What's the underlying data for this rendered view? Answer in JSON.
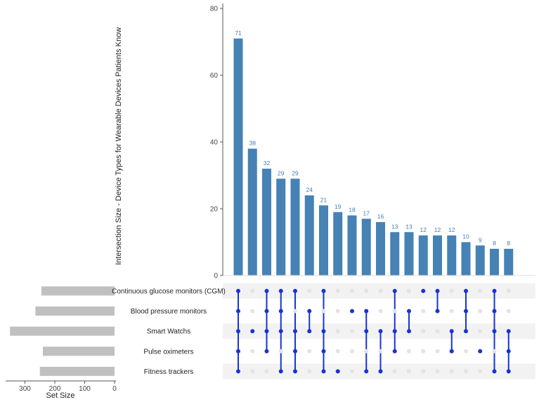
{
  "chart_data": {
    "type": "bar",
    "subtype": "upset",
    "ylabel": "Intersection Size - Device Types for Wearable Devices Patients Know",
    "ylim": [
      0,
      80
    ],
    "yticks": [
      0,
      20,
      40,
      60,
      80
    ],
    "intersection_sizes": [
      71,
      38,
      32,
      29,
      29,
      24,
      21,
      19,
      18,
      17,
      16,
      13,
      13,
      12,
      12,
      12,
      10,
      9,
      8,
      8
    ],
    "sets": [
      "Continuous glucose monitors (CGM)",
      "Blood pressure monitors",
      "Smart Watchs",
      "Pulse oximeters",
      "Fitness trackers"
    ],
    "set_sizes": [
      245,
      265,
      350,
      240,
      250
    ],
    "set_size_xlabel": "Set Size",
    "set_size_xlim": [
      0,
      360
    ],
    "set_size_ticks": [
      300,
      200,
      100,
      0
    ],
    "membership": [
      [
        1,
        1,
        1,
        1,
        1
      ],
      [
        0,
        0,
        1,
        0,
        0
      ],
      [
        1,
        1,
        1,
        1,
        0
      ],
      [
        1,
        1,
        1,
        0,
        1
      ],
      [
        1,
        0,
        1,
        1,
        1
      ],
      [
        0,
        1,
        1,
        0,
        0
      ],
      [
        1,
        0,
        1,
        1,
        1
      ],
      [
        0,
        0,
        0,
        0,
        1
      ],
      [
        0,
        1,
        0,
        0,
        0
      ],
      [
        0,
        1,
        1,
        0,
        1
      ],
      [
        0,
        0,
        1,
        0,
        1
      ],
      [
        1,
        0,
        1,
        1,
        0
      ],
      [
        0,
        1,
        1,
        0,
        0
      ],
      [
        1,
        0,
        0,
        0,
        0
      ],
      [
        1,
        1,
        0,
        0,
        0
      ],
      [
        0,
        0,
        1,
        1,
        0
      ],
      [
        1,
        1,
        1,
        0,
        0
      ],
      [
        0,
        0,
        0,
        1,
        0
      ],
      [
        1,
        1,
        1,
        0,
        1
      ],
      [
        0,
        0,
        1,
        1,
        1
      ]
    ],
    "colors": {
      "bar": "#4682b4",
      "set_bar": "#c0c0c0",
      "dot_active": "#1733d4",
      "dot_inactive": "#e3e3e3",
      "row_band": "#f2f2f2",
      "axis": "#555555"
    }
  }
}
